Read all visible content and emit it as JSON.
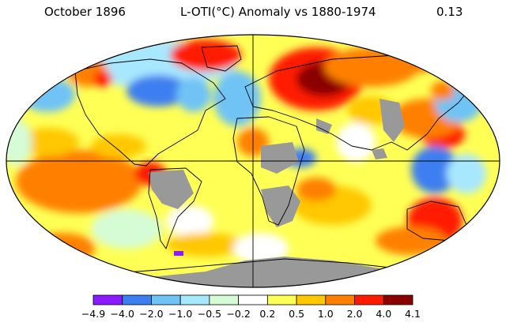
{
  "header": {
    "date": "October 1896",
    "title": "L-OTI(°C) Anomaly vs 1880-1974",
    "global_mean": "0.13"
  },
  "map": {
    "projection": "robinson",
    "missing_data_color": "#999999",
    "land_outline_color": "#000000"
  },
  "legend": {
    "colors": [
      "#8c1aff",
      "#3c7ff0",
      "#6fc3f5",
      "#a8e8ff",
      "#d6fcd6",
      "#ffffff",
      "#ffff55",
      "#ffc800",
      "#ff8000",
      "#ff1a00",
      "#8b0000"
    ],
    "ticks": [
      "−4.9",
      "−4.0",
      "−2.0",
      "−1.0",
      "−0.5",
      "−0.2",
      "0.2",
      "0.5",
      "1.0",
      "2.0",
      "4.0",
      "4.1"
    ]
  }
}
